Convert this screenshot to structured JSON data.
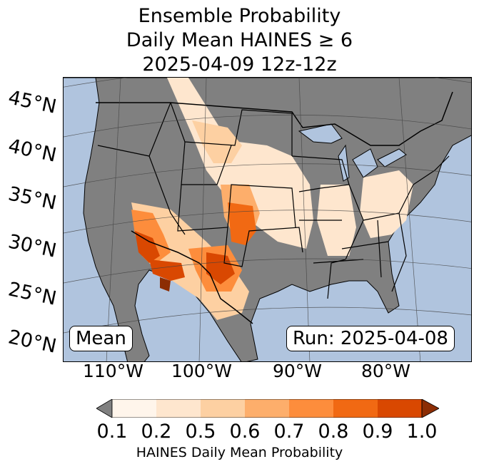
{
  "title": {
    "line1": "Ensemble Probability",
    "line2": "Daily Mean HAINES ≥ 6",
    "line3": "2025-04-09 12z-12z"
  },
  "map": {
    "lat_labels": [
      "45°N",
      "40°N",
      "35°N",
      "30°N",
      "25°N",
      "20°N"
    ],
    "lon_labels": [
      "110°W",
      "100°W",
      "90°W",
      "80°W"
    ],
    "inset_left": "Mean",
    "inset_right": "Run: 2025-04-08",
    "ocean_color": "#b0c4de",
    "land_color": "#808080"
  },
  "colorbar": {
    "label": "HAINES Daily Mean Probability",
    "ticks": [
      "0.1",
      "0.2",
      "0.5",
      "0.6",
      "0.7",
      "0.8",
      "0.9",
      "1.0"
    ],
    "colors": [
      "#fff5eb",
      "#fee6ce",
      "#fdd0a2",
      "#fdae6b",
      "#fd8d3c",
      "#f16913",
      "#d94801",
      "#8c2d04"
    ],
    "under_color": "#808080"
  }
}
